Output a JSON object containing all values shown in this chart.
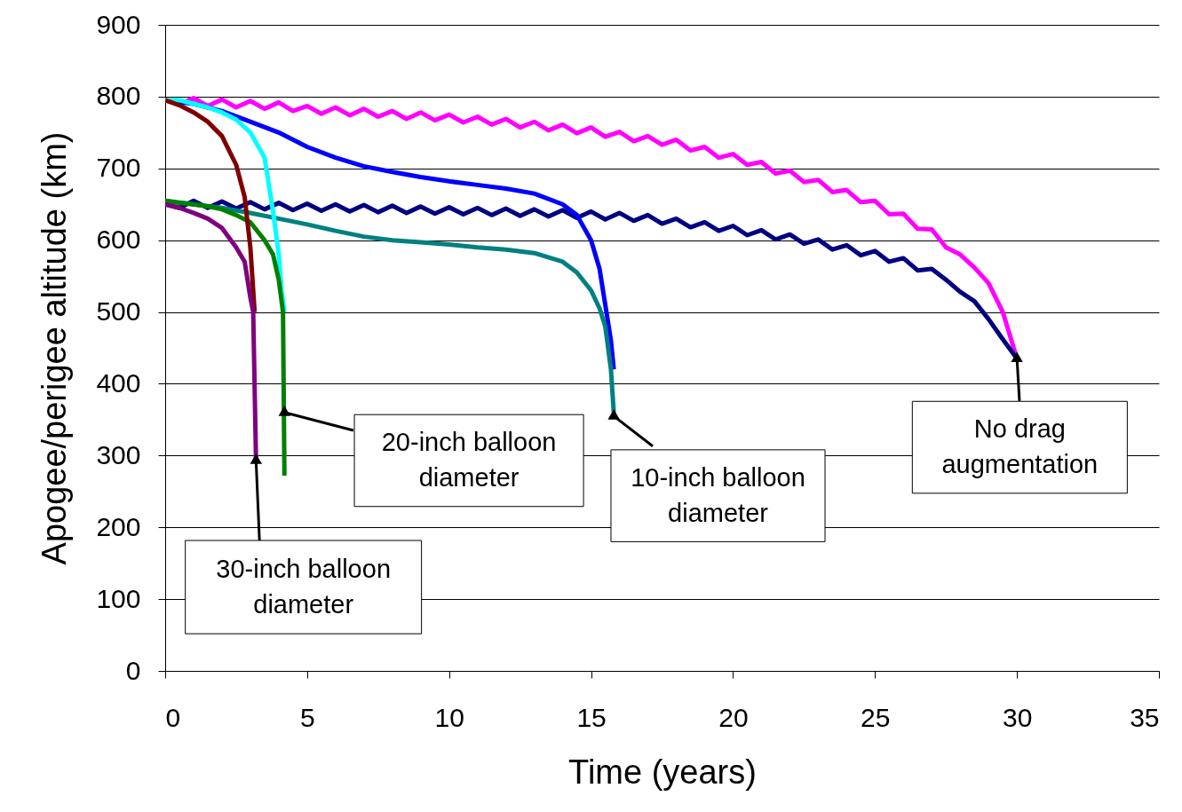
{
  "chart_data": {
    "type": "line",
    "xlabel": "Time (years)",
    "ylabel": "Apogee/perigee altitude (km)",
    "xlim": [
      0,
      35
    ],
    "xticks": [
      0,
      5,
      10,
      15,
      20,
      25,
      30,
      35
    ],
    "ylim": [
      0,
      900
    ],
    "yticks": [
      0,
      100,
      200,
      300,
      400,
      500,
      600,
      700,
      800,
      900
    ],
    "grid": "y",
    "marker": "none",
    "line_style": "solid",
    "series": [
      {
        "color": "#ff00ff",
        "x": [
          0,
          0.5,
          1,
          1.5,
          2,
          2.5,
          3,
          3.5,
          4,
          4.5,
          5,
          5.5,
          6,
          6.5,
          7,
          7.5,
          8,
          8.5,
          9,
          9.5,
          10,
          10.5,
          11,
          11.5,
          12,
          12.5,
          13,
          13.5,
          14,
          14.5,
          15,
          15.5,
          16,
          16.5,
          17,
          17.5,
          18,
          18.5,
          19,
          19.5,
          20,
          20.5,
          21,
          21.5,
          22,
          22.5,
          23,
          23.5,
          24,
          24.5,
          25,
          25.5,
          26,
          26.5,
          27,
          27.5,
          28,
          28.5,
          29,
          29.5,
          30
        ],
        "values": [
          795,
          789,
          798,
          787,
          796,
          785,
          794,
          783,
          792,
          780,
          787,
          776,
          785,
          774,
          783,
          772,
          780,
          769,
          778,
          767,
          775,
          764,
          772,
          761,
          769,
          757,
          765,
          753,
          761,
          749,
          757,
          744,
          751,
          738,
          745,
          733,
          740,
          725,
          730,
          715,
          720,
          705,
          709,
          693,
          697,
          681,
          684,
          667,
          670,
          653,
          655,
          636,
          637,
          616,
          615,
          590,
          580,
          562,
          540,
          500,
          435
        ]
      },
      {
        "color": "#000080",
        "x": [
          0,
          0.5,
          1,
          1.5,
          2,
          2.5,
          3,
          3.5,
          4,
          4.5,
          5,
          5.5,
          6,
          6.5,
          7,
          7.5,
          8,
          8.5,
          9,
          9.5,
          10,
          10.5,
          11,
          11.5,
          12,
          12.5,
          13,
          13.5,
          14,
          14.5,
          15,
          15.5,
          16,
          16.5,
          17,
          17.5,
          18,
          18.5,
          19,
          19.5,
          20,
          20.5,
          21,
          21.5,
          22,
          22.5,
          23,
          23.5,
          24,
          24.5,
          25,
          25.5,
          26,
          26.5,
          27,
          27.5,
          28,
          28.5,
          29,
          29.5,
          30
        ],
        "values": [
          650,
          645,
          655,
          645,
          654,
          644,
          653,
          643,
          652,
          642,
          651,
          641,
          650,
          640,
          649,
          639,
          648,
          638,
          647,
          637,
          646,
          636,
          645,
          635,
          644,
          634,
          643,
          633,
          642,
          631,
          640,
          629,
          638,
          627,
          635,
          623,
          630,
          618,
          625,
          613,
          620,
          607,
          614,
          601,
          608,
          595,
          601,
          587,
          593,
          579,
          585,
          570,
          575,
          558,
          560,
          545,
          528,
          515,
          490,
          462,
          435
        ]
      },
      {
        "color": "#0000ff",
        "x": [
          0,
          1,
          2,
          3,
          4,
          5,
          6,
          7,
          8,
          9,
          10,
          11,
          12,
          13,
          14,
          14.5,
          15,
          15.3,
          15.5,
          15.7,
          15.8
        ],
        "values": [
          795,
          790,
          780,
          765,
          750,
          730,
          715,
          703,
          695,
          688,
          682,
          677,
          672,
          665,
          650,
          635,
          600,
          560,
          510,
          460,
          420
        ]
      },
      {
        "color": "#008080",
        "x": [
          0,
          1,
          2,
          3,
          4,
          5,
          6,
          7,
          8,
          9,
          10,
          11,
          12,
          13,
          14,
          14.5,
          15,
          15.3,
          15.5,
          15.7,
          15.8
        ],
        "values": [
          655,
          650,
          645,
          638,
          630,
          622,
          613,
          605,
          600,
          597,
          594,
          590,
          587,
          582,
          570,
          555,
          530,
          505,
          480,
          420,
          360
        ]
      },
      {
        "color": "#00ffff",
        "x": [
          0,
          0.5,
          1,
          1.5,
          2,
          2.5,
          3,
          3.5,
          3.8,
          4,
          4.1,
          4.2
        ],
        "values": [
          795,
          795,
          790,
          785,
          778,
          768,
          750,
          715,
          640,
          580,
          530,
          500
        ]
      },
      {
        "color": "#008000",
        "x": [
          0,
          0.5,
          1,
          1.5,
          2,
          2.5,
          3,
          3.5,
          3.8,
          4,
          4.15,
          4.2
        ],
        "values": [
          655,
          652,
          650,
          647,
          643,
          635,
          625,
          600,
          580,
          545,
          500,
          272
        ]
      },
      {
        "color": "#800000",
        "x": [
          0,
          0.5,
          1,
          1.5,
          2,
          2.5,
          2.8,
          3,
          3.15
        ],
        "values": [
          795,
          788,
          778,
          765,
          745,
          705,
          660,
          590,
          500
        ]
      },
      {
        "color": "#800080",
        "x": [
          0,
          0.5,
          1,
          1.5,
          2,
          2.5,
          2.8,
          3,
          3.1,
          3.2
        ],
        "values": [
          650,
          645,
          638,
          630,
          617,
          590,
          570,
          520,
          500,
          293
        ]
      }
    ],
    "annotations": [
      {
        "text": "30-inch balloon\ndiameter",
        "x": 3.2,
        "y": 293
      },
      {
        "text": "20-inch balloon\ndiameter",
        "x": 4.2,
        "y": 360
      },
      {
        "text": "10-inch balloon\ndiameter",
        "x": 15.8,
        "y": 355
      },
      {
        "text": "No drag\naugmentation",
        "x": 30,
        "y": 435
      }
    ]
  }
}
